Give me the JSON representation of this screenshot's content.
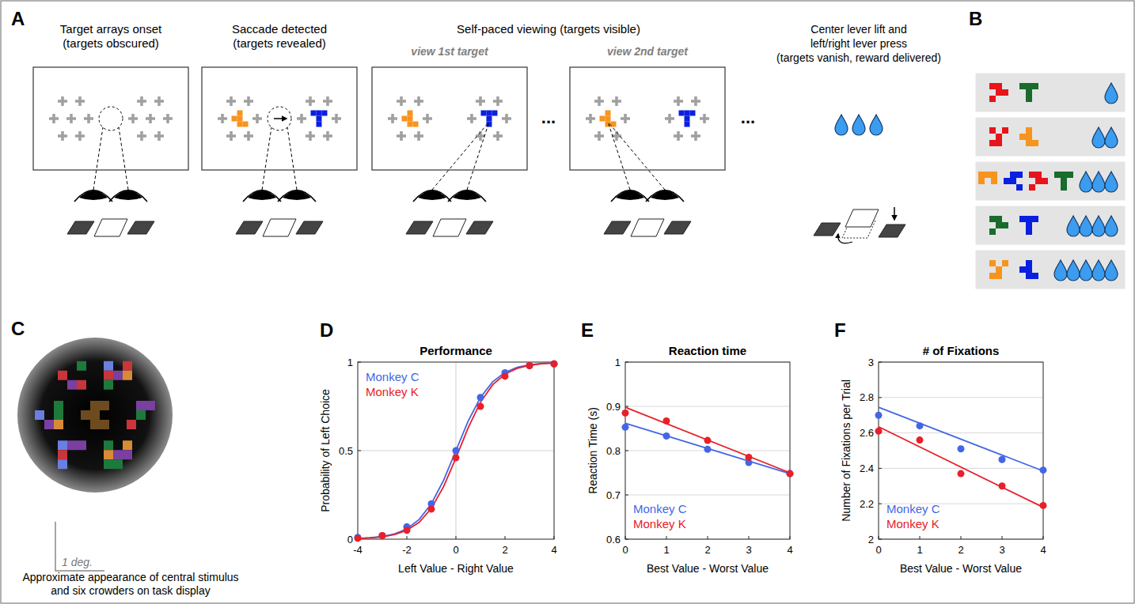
{
  "panel_letters": [
    "A",
    "B",
    "C",
    "D",
    "E",
    "F"
  ],
  "panel_a": {
    "steps": [
      {
        "title_lines": [
          "Target arrays onset",
          "(targets obscured)"
        ]
      },
      {
        "title_lines": [
          "Saccade detected",
          "(targets revealed)"
        ]
      },
      {
        "title_lines": [
          "Self-paced viewing (targets visible)"
        ],
        "subtitles": [
          "view 1st target",
          "view 2nd target"
        ]
      },
      {
        "title_lines": [
          "Center lever lift and",
          "left/right lever press",
          "(targets vanish, reward delivered)"
        ]
      }
    ],
    "ellipsis": "...",
    "targets": [
      "#f7941d",
      "#0a1fe0"
    ],
    "reward_drops": 3
  },
  "panel_b": {
    "rows": [
      {
        "stimuli": [
          "#e8141b",
          "#1a6b2e"
        ],
        "drops": 1
      },
      {
        "stimuli": [
          "#e8141b",
          "#f7941d"
        ],
        "drops": 2
      },
      {
        "stimuli": [
          "#f7941d",
          "#0a1fe0",
          "#e8141b",
          "#1a6b2e"
        ],
        "drops": 3
      },
      {
        "stimuli": [
          "#1a6b2e",
          "#0a1fe0"
        ],
        "drops": 4
      },
      {
        "stimuli": [
          "#f7941d",
          "#0a1fe0"
        ],
        "drops": 5
      }
    ]
  },
  "panel_c": {
    "scale_label": "1 deg.",
    "caption": "Approximate appearance of central stimulus and six crowders on task display"
  },
  "chart_data": [
    {
      "type": "scatter",
      "title": "Performance",
      "x_label": "Left Value - Right Value",
      "y_label": "Probability of Left Choice",
      "x": [
        -4,
        -3,
        -2,
        -1,
        0,
        1,
        2,
        3,
        4
      ],
      "fit_x": [
        -4,
        -3.5,
        -3,
        -2.5,
        -2,
        -1.5,
        -1,
        -0.5,
        0,
        0.5,
        1,
        1.5,
        2,
        2.5,
        3,
        3.5,
        4
      ],
      "series": [
        {
          "name": "Monkey C",
          "color": "#4466e6",
          "marker": "circle",
          "values": [
            0.01,
            0.02,
            0.07,
            0.2,
            0.5,
            0.8,
            0.94,
            0.98,
            0.99
          ],
          "fit": [
            0.004,
            0.008,
            0.015,
            0.03,
            0.058,
            0.111,
            0.2,
            0.333,
            0.5,
            0.667,
            0.8,
            0.889,
            0.942,
            0.97,
            0.985,
            0.992,
            0.996
          ]
        },
        {
          "name": "Monkey K",
          "color": "#e8202a",
          "marker": "circle",
          "values": [
            0.005,
            0.02,
            0.05,
            0.17,
            0.46,
            0.75,
            0.92,
            0.98,
            0.99
          ],
          "fit": [
            0.003,
            0.007,
            0.013,
            0.026,
            0.05,
            0.095,
            0.174,
            0.297,
            0.458,
            0.629,
            0.773,
            0.872,
            0.932,
            0.965,
            0.982,
            0.991,
            0.995
          ]
        }
      ],
      "xlim": [
        -4,
        4
      ],
      "ylim": [
        0,
        1
      ],
      "xticks": [
        -4,
        -2,
        0,
        2,
        4
      ],
      "yticks": [
        0,
        0.5,
        1
      ],
      "reference_lines": {
        "x": [
          0
        ],
        "y": [
          0.5
        ]
      },
      "grid": false,
      "legend": "upper left"
    },
    {
      "type": "scatter",
      "title": "Reaction time",
      "x_label": "Best Value - Worst Value",
      "y_label": "Reaction Time (s)",
      "x": [
        0,
        1,
        2,
        3,
        4
      ],
      "fit_x": [
        0,
        4
      ],
      "series": [
        {
          "name": "Monkey C",
          "color": "#4466e6",
          "marker": "circle",
          "values": [
            0.853,
            0.833,
            0.803,
            0.773,
            0.748
          ],
          "fit": [
            0.862,
            0.748
          ]
        },
        {
          "name": "Monkey K",
          "color": "#e8202a",
          "marker": "circle",
          "values": [
            0.885,
            0.867,
            0.823,
            0.785,
            0.748
          ],
          "fit": [
            0.898,
            0.75
          ]
        }
      ],
      "xlim": [
        0,
        4
      ],
      "ylim": [
        0.6,
        1
      ],
      "xticks": [
        0,
        1,
        2,
        3,
        4
      ],
      "yticks": [
        0.6,
        0.7,
        0.8,
        0.9,
        1
      ],
      "grid": true,
      "legend": "lower left"
    },
    {
      "type": "scatter",
      "title": "# of Fixations",
      "x_label": "Best Value - Worst Value",
      "y_label": "Number of Fixations per Trial",
      "x": [
        0,
        1,
        2,
        3,
        4
      ],
      "fit_x": [
        0,
        4
      ],
      "series": [
        {
          "name": "Monkey C",
          "color": "#4466e6",
          "marker": "circle",
          "values": [
            2.7,
            2.64,
            2.51,
            2.45,
            2.39
          ],
          "fit": [
            2.745,
            2.385
          ]
        },
        {
          "name": "Monkey K",
          "color": "#e8202a",
          "marker": "circle",
          "values": [
            2.61,
            2.56,
            2.37,
            2.3,
            2.19
          ],
          "fit": [
            2.635,
            2.18
          ]
        }
      ],
      "xlim": [
        0,
        4
      ],
      "ylim": [
        2,
        3
      ],
      "xticks": [
        0,
        1,
        2,
        3,
        4
      ],
      "yticks": [
        2,
        2.2,
        2.4,
        2.6,
        2.8,
        3
      ],
      "grid": true,
      "legend": "lower left"
    }
  ]
}
